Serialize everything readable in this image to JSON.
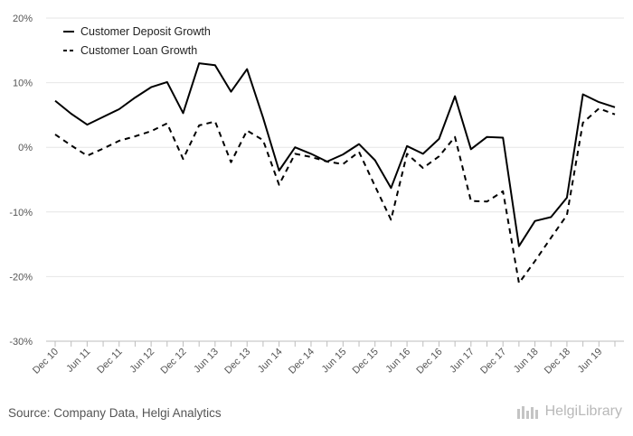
{
  "chart_data": {
    "type": "line",
    "title": "",
    "xlabel": "",
    "ylabel": "",
    "ylim": [
      -30,
      20
    ],
    "yticks": [
      -30,
      -20,
      -10,
      0,
      10,
      20
    ],
    "ytick_labels": [
      "-30%",
      "-20%",
      "-10%",
      "0%",
      "10%",
      "20%"
    ],
    "grid": true,
    "legend_position": "top-left",
    "x": [
      "Dec 10",
      "Mar 11",
      "Jun 11",
      "Sep 11",
      "Dec 11",
      "Mar 12",
      "Jun 12",
      "Sep 12",
      "Dec 12",
      "Mar 13",
      "Jun 13",
      "Sep 13",
      "Dec 13",
      "Mar 14",
      "Jun 14",
      "Sep 14",
      "Dec 14",
      "Mar 15",
      "Jun 15",
      "Sep 15",
      "Dec 15",
      "Mar 16",
      "Jun 16",
      "Sep 16",
      "Dec 16",
      "Mar 17",
      "Jun 17",
      "Sep 17",
      "Dec 17",
      "Mar 18",
      "Jun 18",
      "Sep 18",
      "Dec 18",
      "Mar 19",
      "Jun 19",
      "Sep 19"
    ],
    "xtick_labels": [
      "Dec 10",
      "Jun 11",
      "Dec 11",
      "Jun 12",
      "Dec 12",
      "Jun 13",
      "Dec 13",
      "Jun 14",
      "Dec 14",
      "Jun 15",
      "Dec 15",
      "Jun 16",
      "Dec 16",
      "Jun 17",
      "Dec 17",
      "Jun 18",
      "Dec 18",
      "Jun 19"
    ],
    "series": [
      {
        "name": "Customer Deposit Growth",
        "style": "solid",
        "color": "#000000",
        "values": [
          7.2,
          5.2,
          3.5,
          4.7,
          5.9,
          7.7,
          9.3,
          10.1,
          5.3,
          13.0,
          12.7,
          8.6,
          12.1,
          4.6,
          -3.6,
          0.0,
          -1.0,
          -2.2,
          -1.1,
          0.5,
          -2.0,
          -6.3,
          0.2,
          -1.0,
          1.3,
          7.9,
          -0.3,
          1.6,
          1.5,
          -15.3,
          -11.4,
          -10.8,
          -7.8,
          8.2,
          7.0,
          6.2
        ]
      },
      {
        "name": "Customer Loan Growth",
        "style": "dashed",
        "color": "#000000",
        "values": [
          2.0,
          0.3,
          -1.3,
          -0.2,
          1.0,
          1.7,
          2.5,
          3.7,
          -1.8,
          3.4,
          4.0,
          -2.3,
          2.6,
          1.1,
          -5.8,
          -1.0,
          -1.5,
          -2.2,
          -2.6,
          -0.7,
          -6.0,
          -11.2,
          -1.0,
          -3.2,
          -1.4,
          1.6,
          -8.3,
          -8.4,
          -6.8,
          -21.0,
          -17.6,
          -14.0,
          -10.5,
          3.8,
          6.0,
          5.1
        ]
      }
    ]
  },
  "footer": {
    "source": "Source: Company Data, Helgi Analytics",
    "brand": "HelgiLibrary"
  }
}
